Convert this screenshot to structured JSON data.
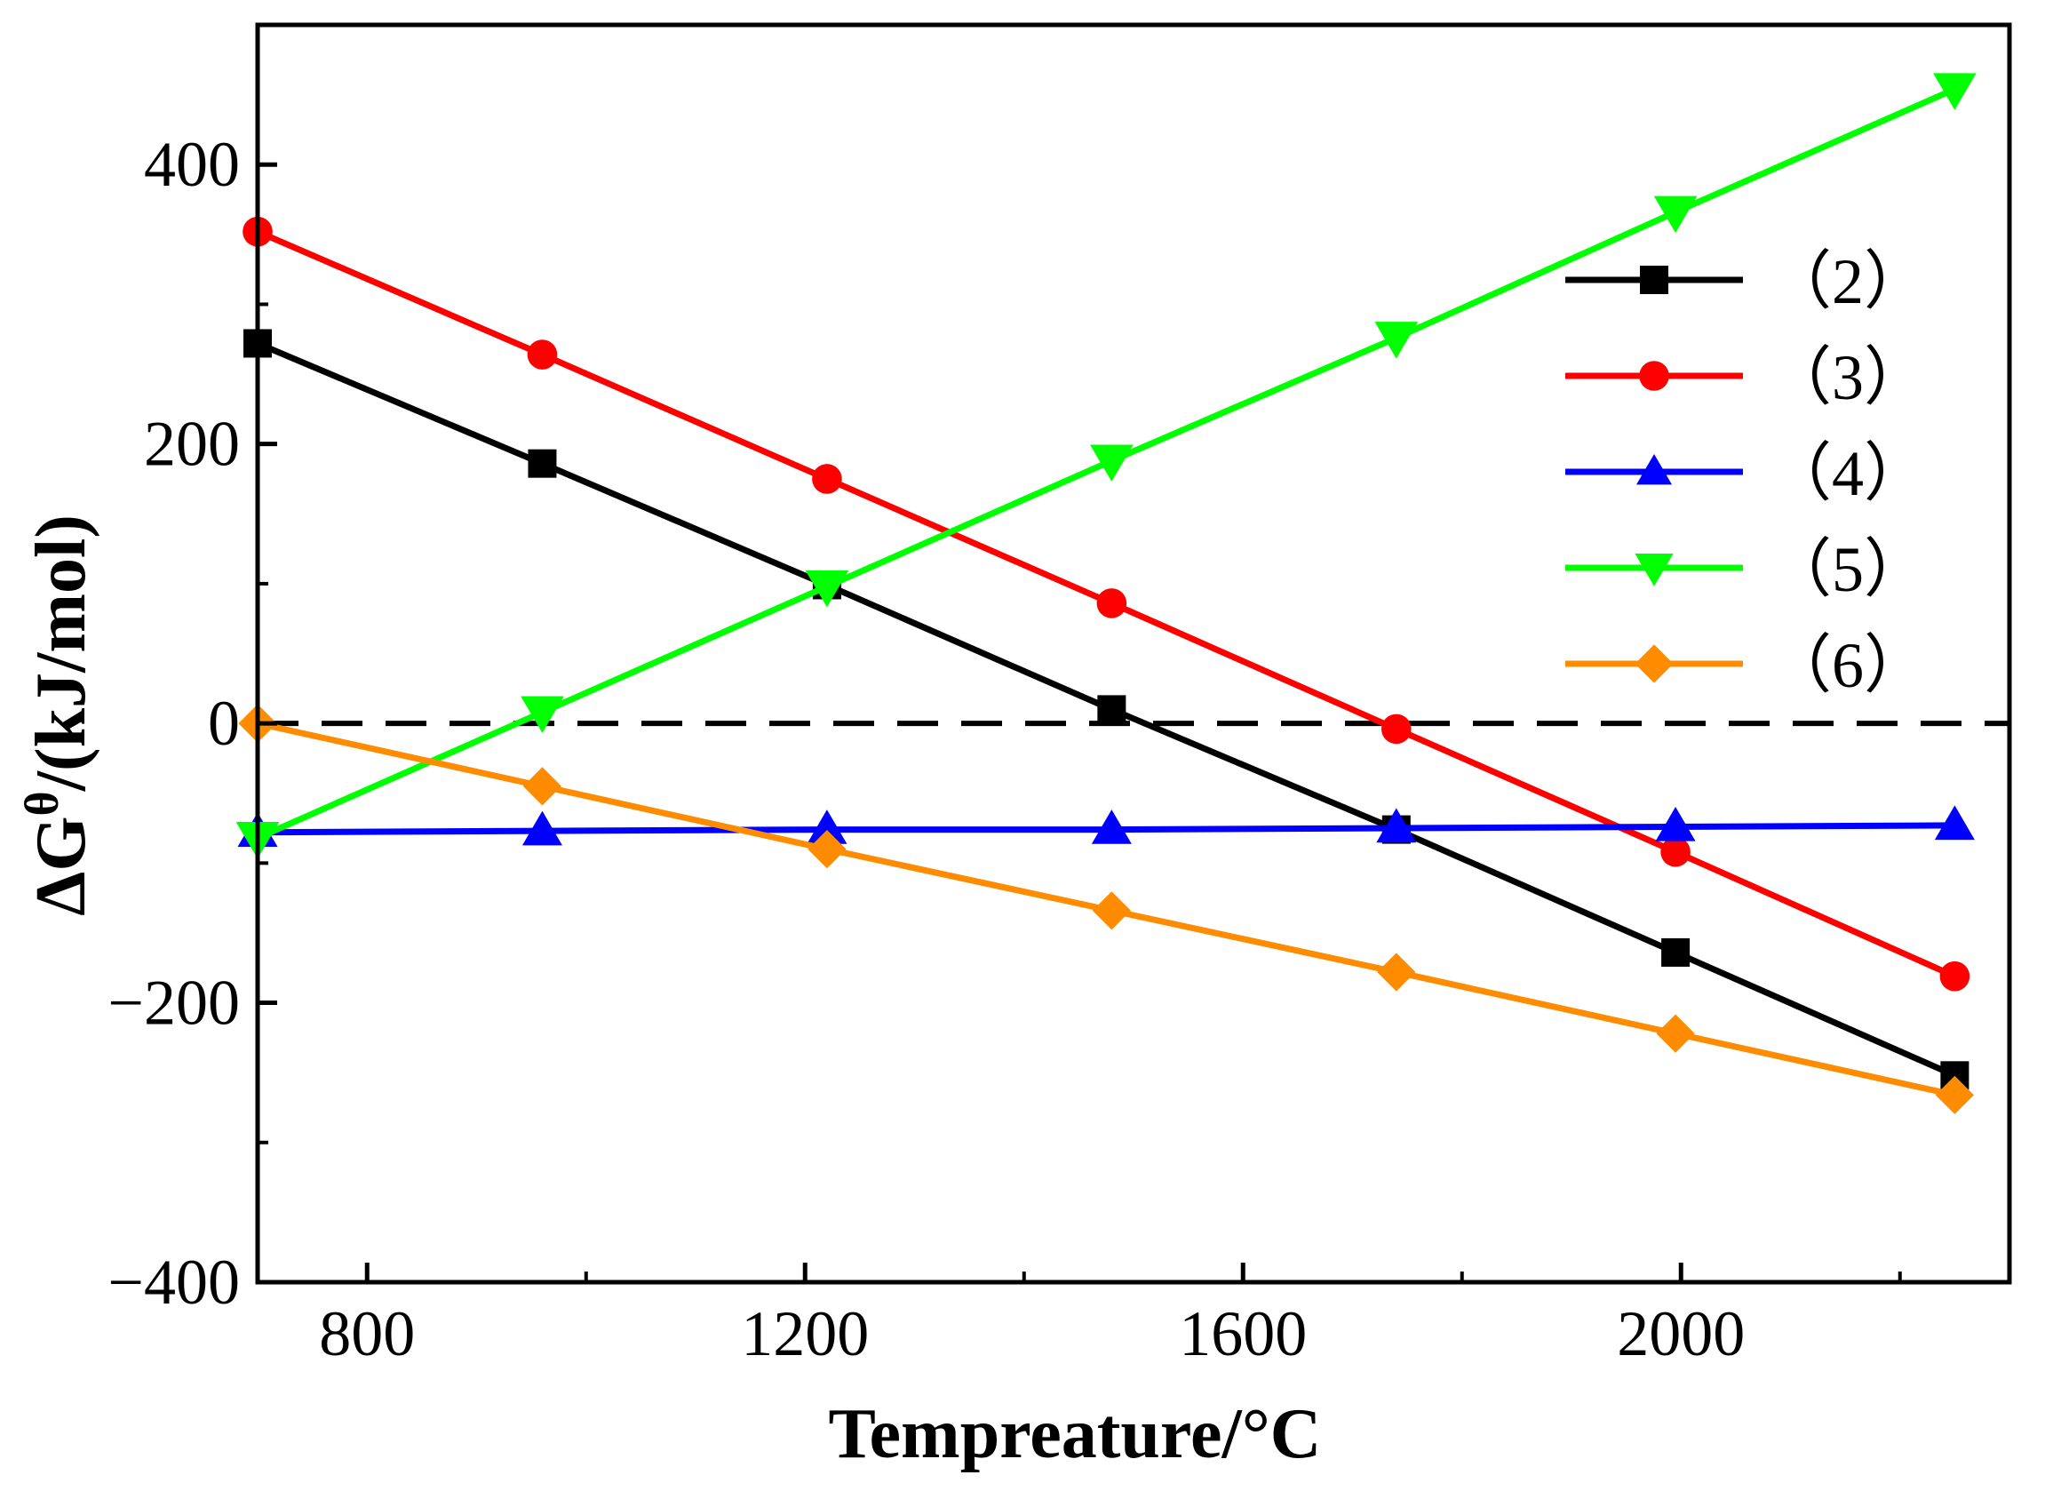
{
  "chart_data": {
    "type": "line",
    "title": "",
    "xlabel": "Tempreature/°C",
    "ylabel": "ΔG",
    "ylabel_sup": "θ",
    "ylabel_unit": "/(kJ/mol)",
    "xlim": [
      700,
      2300
    ],
    "ylim": [
      -400,
      500
    ],
    "xticks": [
      800,
      1200,
      1600,
      2000
    ],
    "yticks": [
      -400,
      -200,
      0,
      200,
      400
    ],
    "xtick_labels": [
      "800",
      "1200",
      "1600",
      "2000"
    ],
    "ytick_labels": [
      "−400",
      "−200",
      "0",
      "200",
      "400"
    ],
    "reference_line": {
      "y": 0,
      "style": "dashed",
      "color": "#000000"
    },
    "legend_position": "upper-right",
    "x": [
      700,
      960,
      1220,
      1480,
      1740,
      1995,
      2250
    ],
    "series": [
      {
        "name": "（2）",
        "color": "#000000",
        "marker": "square",
        "values": [
          272,
          186,
          99,
          10,
          -76,
          -164,
          -252
        ]
      },
      {
        "name": "（3）",
        "color": "#ff0000",
        "marker": "circle",
        "values": [
          352,
          264,
          175,
          86,
          -4,
          -92,
          -181
        ]
      },
      {
        "name": "（4）",
        "color": "#0000ff",
        "marker": "triangle-up",
        "values": [
          -78,
          -77,
          -76,
          -76,
          -75,
          -74,
          -73
        ]
      },
      {
        "name": "（5）",
        "color": "#00ff00",
        "marker": "triangle-down",
        "values": [
          -82,
          8,
          98,
          188,
          276,
          366,
          454
        ]
      },
      {
        "name": "（6）",
        "color": "#ff8c00",
        "marker": "diamond",
        "values": [
          0,
          -45,
          -90,
          -134,
          -178,
          -222,
          -266
        ]
      }
    ]
  }
}
